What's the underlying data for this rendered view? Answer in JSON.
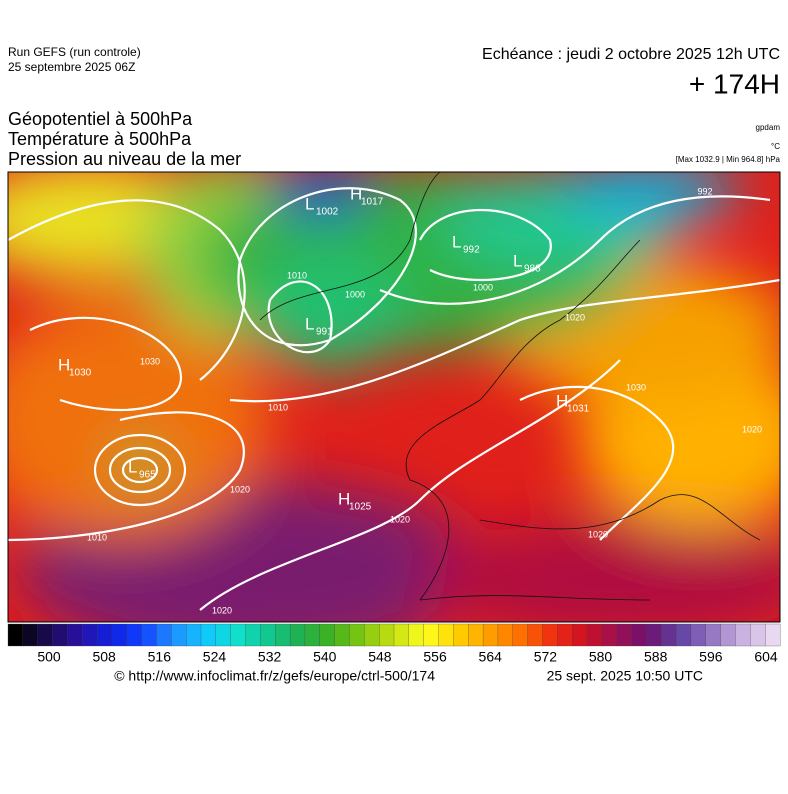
{
  "header": {
    "run": "Run GEFS (run controle)",
    "run_date": "25 septembre 2025 06Z",
    "valid": "Echéance : jeudi 2 octobre 2025 12h UTC",
    "lead": "+ 174H",
    "fields": [
      "Géopotentiel à 500hPa",
      "Température à 500hPa",
      "Pression au niveau de la mer"
    ],
    "units": [
      "gpdam",
      "°C",
      "[Max 1032.9 | Min 964.8] hPa"
    ]
  },
  "map": {
    "centers": [
      {
        "type": "L",
        "value": 1002
      },
      {
        "type": "H",
        "value": 1017
      },
      {
        "type": "L",
        "value": 992
      },
      {
        "type": "L",
        "value": 988
      },
      {
        "type": "L",
        "value": 991
      },
      {
        "type": "H",
        "value": 1030
      },
      {
        "type": "H",
        "value": 1031
      },
      {
        "type": "L",
        "value": 965
      },
      {
        "type": "H",
        "value": 1025
      }
    ],
    "contour_labels": [
      992,
      1010,
      1000,
      1000,
      1010,
      1030,
      1020,
      1010,
      1020,
      1020,
      1020,
      1030,
      1020,
      1020
    ]
  },
  "colorbar": {
    "ticks": [
      500,
      508,
      516,
      524,
      532,
      540,
      548,
      556,
      564,
      572,
      580,
      588,
      596,
      604
    ]
  },
  "footer": {
    "source": "© http://www.infoclimat.fr/z/gefs/europe/ctrl-500/174",
    "generated": "25 sept. 2025 10:50 UTC"
  }
}
